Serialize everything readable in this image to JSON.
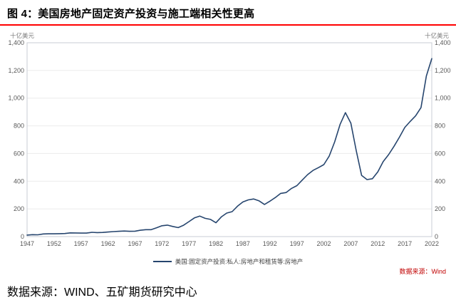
{
  "header": {
    "title": "图 4：美国房地产固定资产投资与施工端相关性更高"
  },
  "chart": {
    "unit_left": "十亿美元",
    "unit_right": "十亿美元",
    "legend_label": "美国:固定资产投资:私人:房地产和租赁等:房地产",
    "source_right": "数据来源：Wind",
    "line_color": "#26456e",
    "grid_color": "#ebebeb",
    "border_color": "#c8ccd4",
    "accent_red": "#ff0000",
    "source_red": "#c00000"
  },
  "footer": {
    "source": "数据来源：WIND、五矿期货研究中心"
  },
  "chart_data": {
    "type": "line",
    "title": "图 4：美国房地产固定资产投资与施工端相关性更高",
    "xlabel": "",
    "ylabel": "十亿美元",
    "ylim": [
      0,
      1400
    ],
    "yticks": [
      0,
      200,
      400,
      600,
      800,
      1000,
      1200,
      1400
    ],
    "xticks": [
      1947,
      1952,
      1957,
      1962,
      1967,
      1972,
      1977,
      1982,
      1987,
      1992,
      1997,
      2002,
      2007,
      2012,
      2017,
      2022
    ],
    "legend": [
      "美国:固定资产投资:私人:房地产和租赁等:房地产"
    ],
    "grid": true,
    "legend_position": "bottom-center",
    "x": [
      1947,
      1948,
      1949,
      1950,
      1951,
      1952,
      1953,
      1954,
      1955,
      1956,
      1957,
      1958,
      1959,
      1960,
      1961,
      1962,
      1963,
      1964,
      1965,
      1966,
      1967,
      1968,
      1969,
      1970,
      1971,
      1972,
      1973,
      1974,
      1975,
      1976,
      1977,
      1978,
      1979,
      1980,
      1981,
      1982,
      1983,
      1984,
      1985,
      1986,
      1987,
      1988,
      1989,
      1990,
      1991,
      1992,
      1993,
      1994,
      1995,
      1996,
      1997,
      1998,
      1999,
      2000,
      2001,
      2002,
      2003,
      2004,
      2005,
      2006,
      2007,
      2008,
      2009,
      2010,
      2011,
      2012,
      2013,
      2014,
      2015,
      2016,
      2017,
      2018,
      2019,
      2020,
      2021,
      2022
    ],
    "values": [
      11,
      14,
      13,
      19,
      20,
      20,
      21,
      22,
      27,
      26,
      25,
      25,
      31,
      29,
      30,
      33,
      36,
      38,
      40,
      38,
      39,
      46,
      50,
      50,
      64,
      78,
      83,
      73,
      65,
      82,
      108,
      135,
      148,
      132,
      124,
      100,
      142,
      170,
      180,
      220,
      250,
      265,
      272,
      258,
      232,
      256,
      282,
      312,
      318,
      348,
      368,
      408,
      448,
      478,
      498,
      520,
      582,
      684,
      810,
      895,
      820,
      620,
      442,
      412,
      418,
      468,
      542,
      592,
      652,
      718,
      788,
      832,
      872,
      932,
      1160,
      1285
    ]
  }
}
